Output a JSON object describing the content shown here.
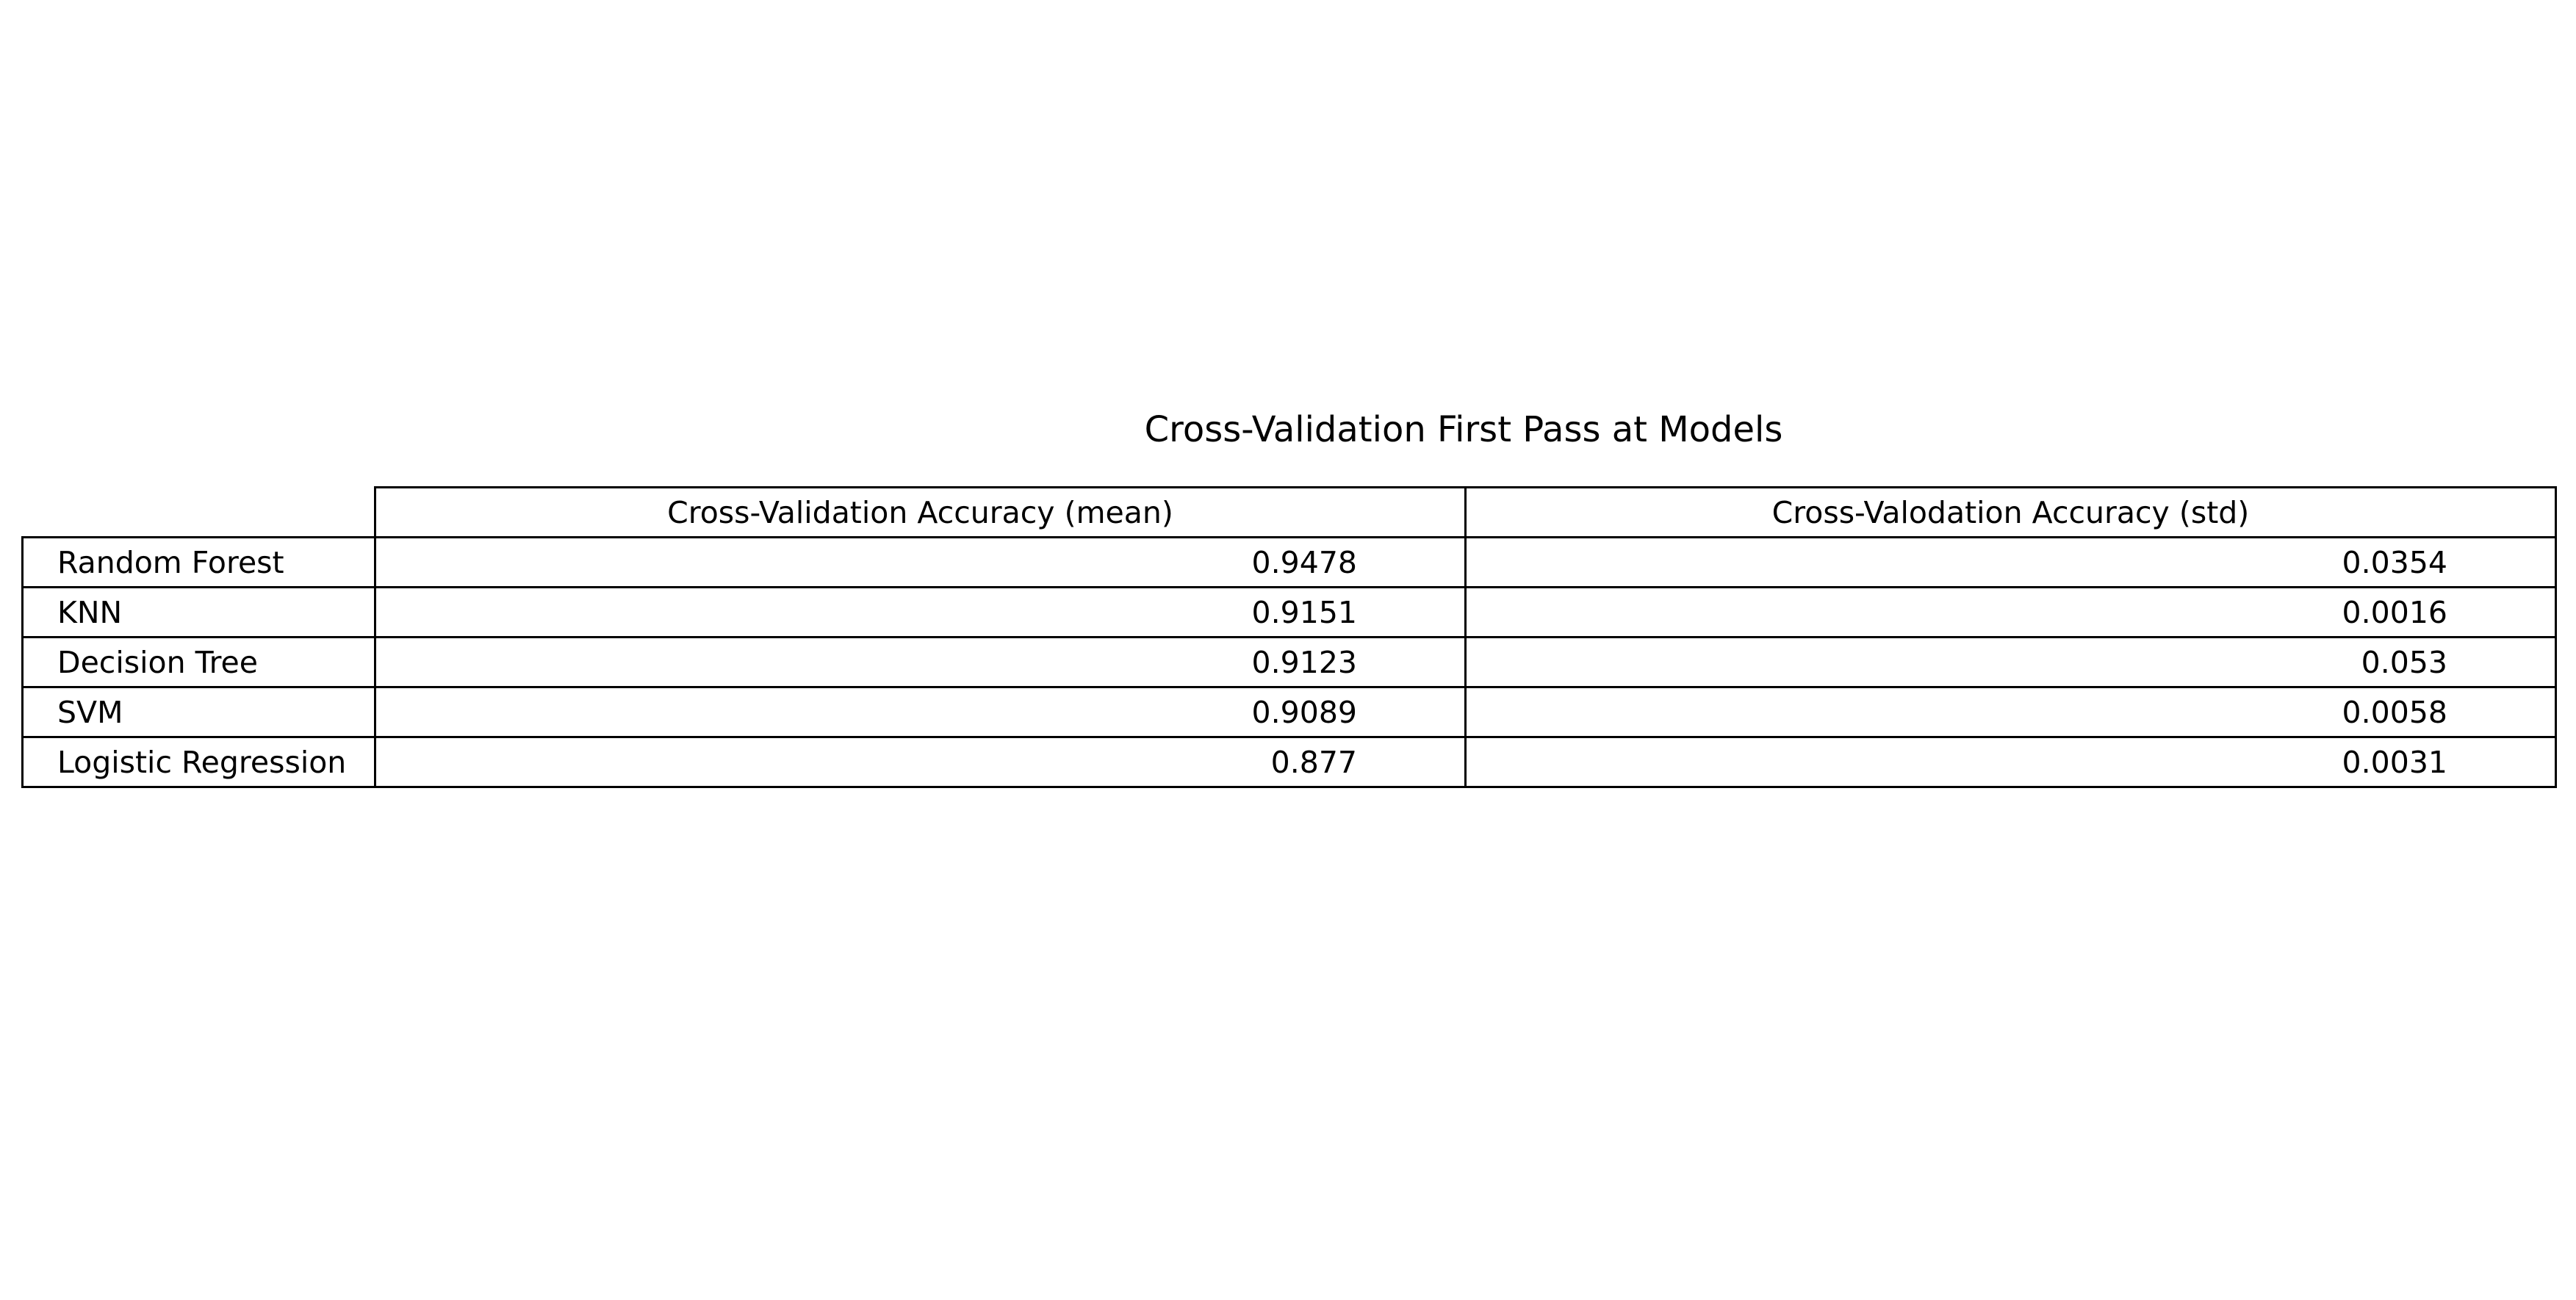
{
  "chart_data": {
    "type": "table",
    "title": "Cross-Validation First Pass at Models",
    "columns": [
      "Cross-Validation Accuracy (mean)",
      "Cross-Valodation Accuracy (std)"
    ],
    "rows": [
      {
        "label": "Random Forest",
        "values": [
          "0.9478",
          "0.0354"
        ]
      },
      {
        "label": "KNN",
        "values": [
          "0.9151",
          "0.0016"
        ]
      },
      {
        "label": "Decision Tree",
        "values": [
          "0.9123",
          "0.053"
        ]
      },
      {
        "label": "SVM",
        "values": [
          "0.9089",
          "0.0058"
        ]
      },
      {
        "label": "Logistic Regression",
        "values": [
          "0.877",
          "0.0031"
        ]
      }
    ]
  }
}
